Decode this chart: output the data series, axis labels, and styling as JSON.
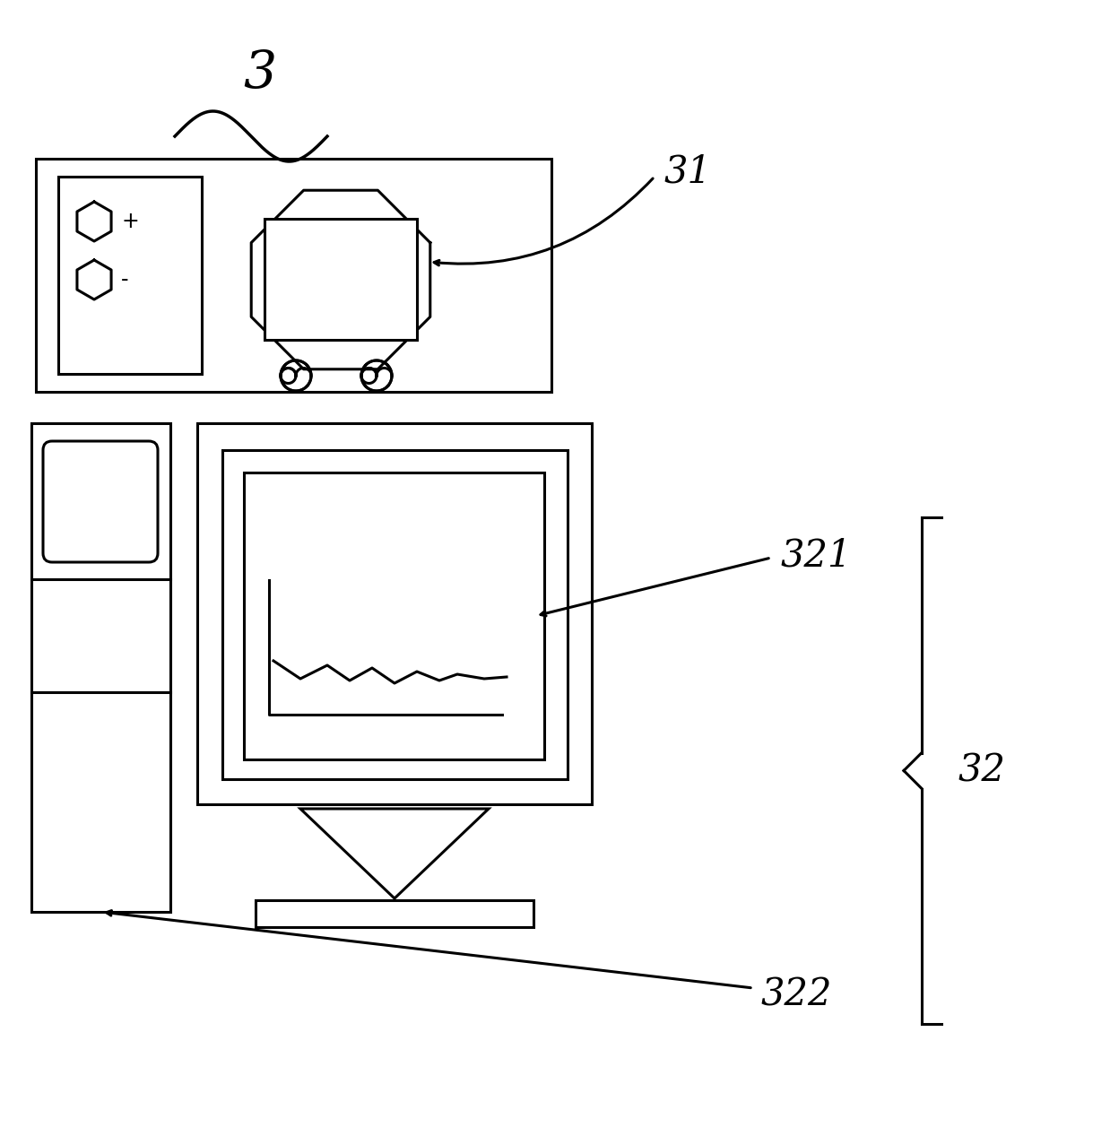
{
  "bg_color": "#ffffff",
  "line_color": "#000000",
  "line_width": 2.2,
  "label_3": "3",
  "label_31": "31",
  "label_321": "321",
  "label_322": "322",
  "label_32": "32",
  "label_fontsize": 30,
  "label_fontsize_large": 42
}
